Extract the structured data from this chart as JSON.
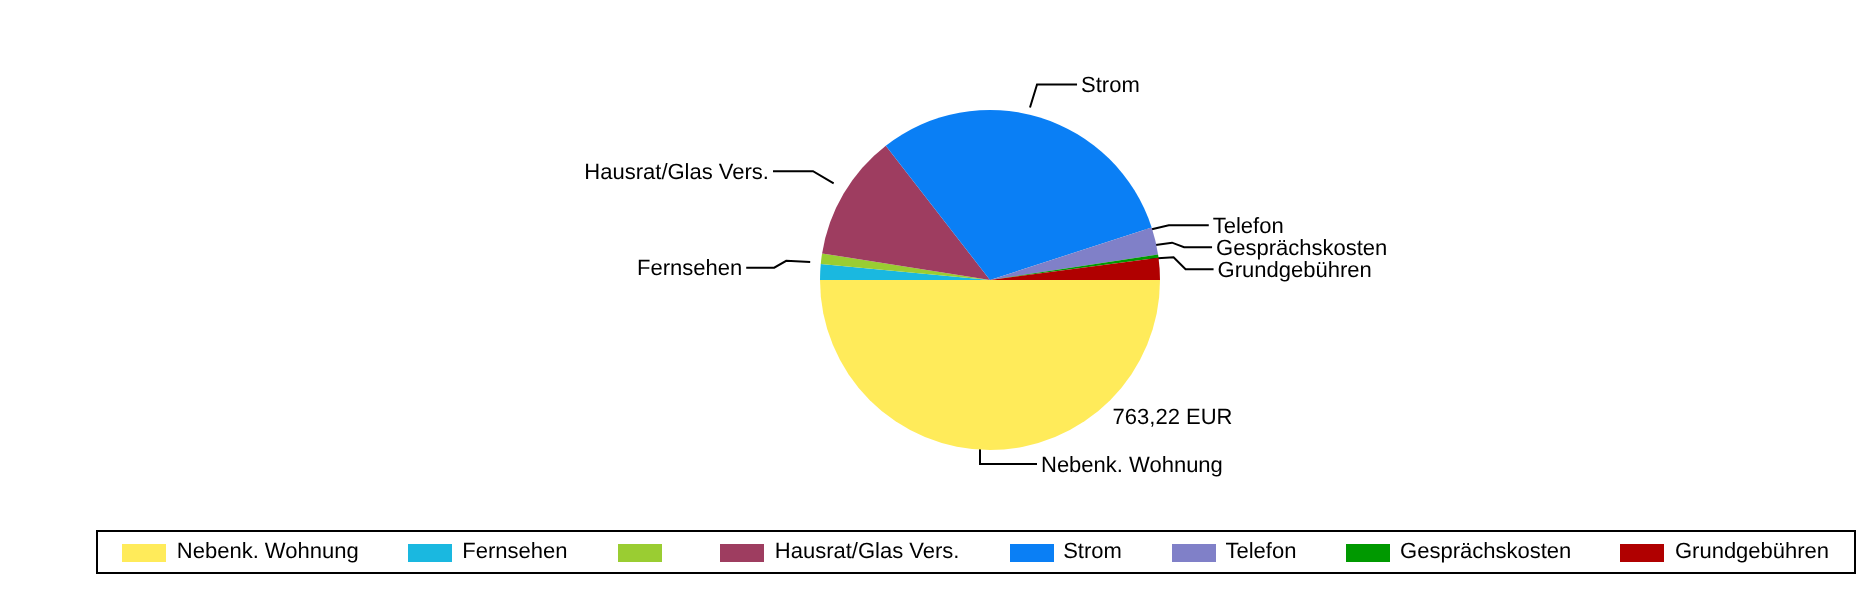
{
  "chart_data": {
    "type": "pie",
    "categories": [
      "Nebenk. Wohnung",
      "Fernsehen",
      null,
      "Hausrat/Glas Vers.",
      "Strom",
      "Telefon",
      "Gesprächskosten",
      "Grundgebühren"
    ],
    "values": [
      50,
      1.5,
      1,
      12,
      30.5,
      2.6,
      0.3,
      2.1
    ],
    "colors": [
      "#ffeb5a",
      "#1ab8e0",
      "#9acd32",
      "#9e3d60",
      "#0a7ff5",
      "#8080c8",
      "#009900",
      "#b00000"
    ],
    "annotations": [
      "763,22 EUR"
    ],
    "legend": "bottom"
  }
}
